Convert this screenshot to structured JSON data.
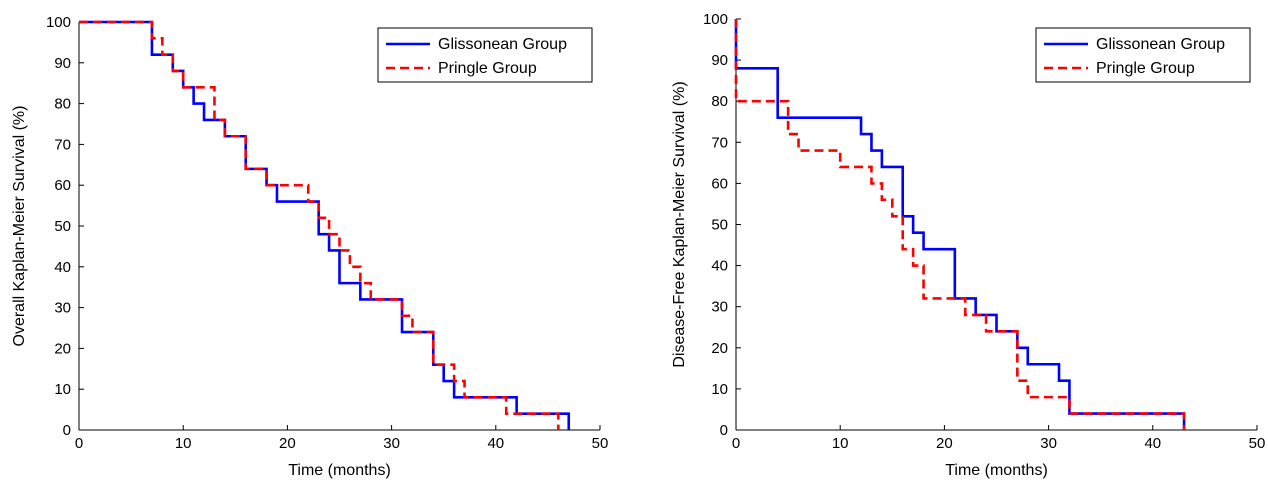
{
  "chart_data": [
    {
      "type": "line",
      "step": "post",
      "xlabel": "Time (months)",
      "ylabel": "Overall Kaplan-Meier Survival (%)",
      "xlim": [
        0,
        50
      ],
      "ylim": [
        0,
        100
      ],
      "xticks": [
        "0",
        "10",
        "20",
        "30",
        "40",
        "50"
      ],
      "yticks": [
        "0",
        "10",
        "20",
        "30",
        "40",
        "50",
        "60",
        "70",
        "80",
        "90",
        "100"
      ],
      "grid": false,
      "legend_position": "top-right",
      "series": [
        {
          "name": "Glissonean Group",
          "color": "#0000ff",
          "dash": "solid",
          "x": [
            0,
            7,
            9,
            10,
            11,
            12,
            14,
            16,
            18,
            19,
            22,
            23,
            24,
            25,
            27,
            31,
            34,
            35,
            36,
            42,
            47
          ],
          "y": [
            100,
            92,
            88,
            84,
            80,
            76,
            72,
            64,
            60,
            56,
            56,
            48,
            44,
            36,
            32,
            24,
            16,
            12,
            8,
            4,
            0
          ]
        },
        {
          "name": "Pringle Group",
          "color": "#ff0000",
          "dash": "dashed",
          "x": [
            0,
            7,
            8,
            9,
            10,
            13,
            14,
            16,
            18,
            22,
            23,
            24,
            25,
            26,
            27,
            28,
            31,
            32,
            34,
            36,
            37,
            41,
            46
          ],
          "y": [
            100,
            96,
            92,
            88,
            84,
            76,
            72,
            64,
            60,
            56,
            52,
            48,
            44,
            40,
            36,
            32,
            28,
            24,
            16,
            12,
            8,
            4,
            0
          ]
        }
      ]
    },
    {
      "type": "line",
      "step": "post",
      "xlabel": "Time (months)",
      "ylabel": "Disease-Free Kaplan-Meier Survival (%)",
      "xlim": [
        0,
        50
      ],
      "ylim": [
        0,
        100
      ],
      "xticks": [
        "0",
        "10",
        "20",
        "30",
        "40",
        "50"
      ],
      "yticks": [
        "0",
        "10",
        "20",
        "30",
        "40",
        "50",
        "60",
        "70",
        "80",
        "90",
        "100"
      ],
      "grid": false,
      "legend_position": "top-right",
      "series": [
        {
          "name": "Glissonean Group",
          "color": "#0000ff",
          "dash": "solid",
          "x": [
            0,
            0,
            4,
            12,
            13,
            14,
            16,
            17,
            18,
            21,
            23,
            25,
            27,
            28,
            31,
            32,
            43
          ],
          "y": [
            100,
            88,
            76,
            72,
            68,
            64,
            52,
            48,
            44,
            32,
            28,
            24,
            20,
            16,
            12,
            4,
            0
          ]
        },
        {
          "name": "Pringle Group",
          "color": "#ff0000",
          "dash": "dashed",
          "x": [
            0,
            0,
            5,
            6,
            10,
            13,
            14,
            15,
            16,
            17,
            18,
            22,
            24,
            27,
            28,
            32,
            43
          ],
          "y": [
            100,
            80,
            72,
            68,
            64,
            60,
            56,
            52,
            44,
            40,
            32,
            28,
            24,
            12,
            8,
            4,
            0
          ]
        }
      ]
    }
  ]
}
